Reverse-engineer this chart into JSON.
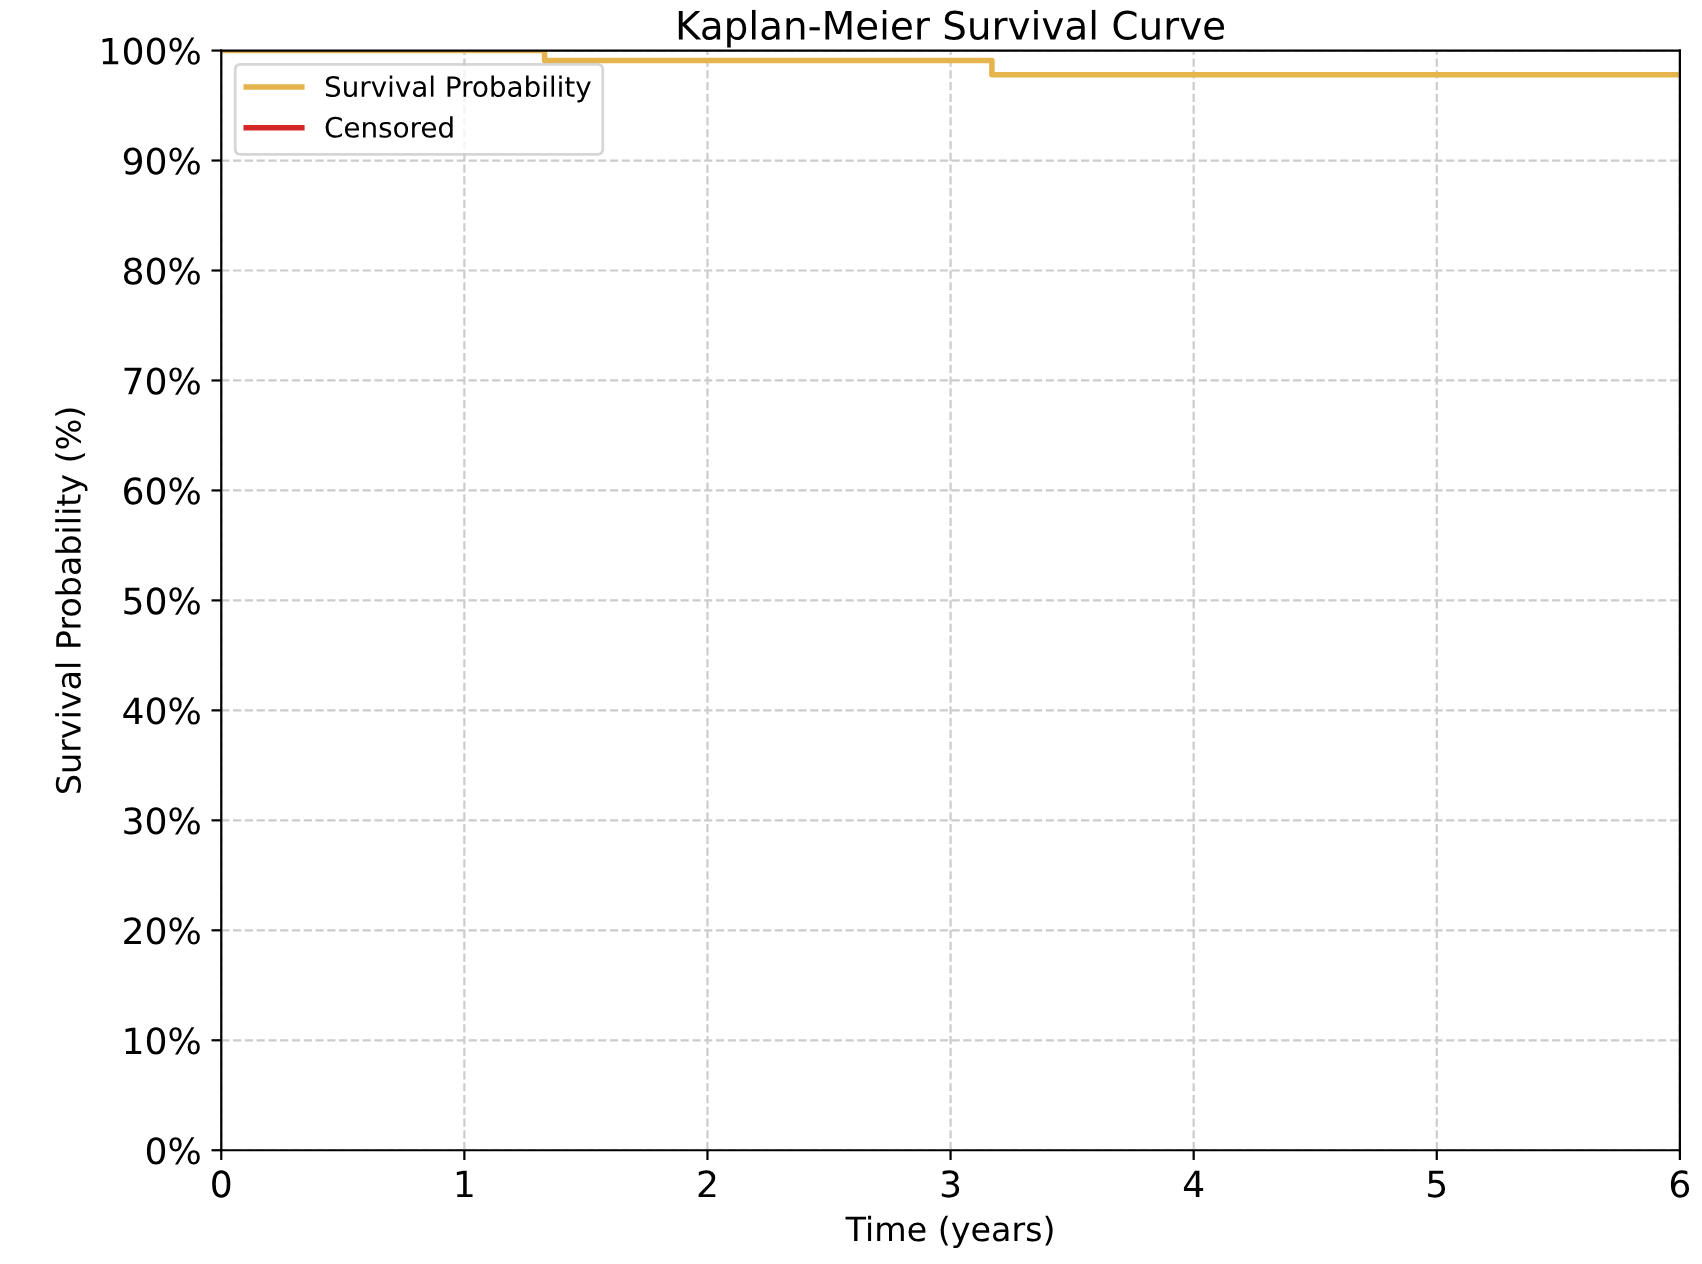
{
  "chart_data": {
    "type": "step",
    "title": "Kaplan-Meier Survival Curve",
    "xlabel": "Time (years)",
    "ylabel": "Survival Probability (%)",
    "series": [
      {
        "name": "Survival Probability",
        "color": "#e6b44c",
        "x": [
          0,
          1.33,
          3.17,
          6
        ],
        "values": [
          100,
          99.1,
          97.8,
          97.8
        ]
      },
      {
        "name": "Censored",
        "color": "#d62728",
        "type": "scatter"
      }
    ],
    "xlim": [
      0,
      6
    ],
    "xticks": [
      0,
      1,
      2,
      3,
      4,
      5,
      6
    ],
    "ylim": [
      0,
      100
    ],
    "yticks": [
      {
        "value": 0,
        "label": "0%"
      },
      {
        "value": 10,
        "label": "10%"
      },
      {
        "value": 20,
        "label": "20%"
      },
      {
        "value": 30,
        "label": "30%"
      },
      {
        "value": 40,
        "label": "40%"
      },
      {
        "value": 50,
        "label": "50%"
      },
      {
        "value": 60,
        "label": "60%"
      },
      {
        "value": 70,
        "label": "70%"
      },
      {
        "value": 80,
        "label": "80%"
      },
      {
        "value": 90,
        "label": "90%"
      },
      {
        "value": 100,
        "label": "100%"
      }
    ],
    "grid": true,
    "legend": "top left",
    "line_style": "solid"
  }
}
